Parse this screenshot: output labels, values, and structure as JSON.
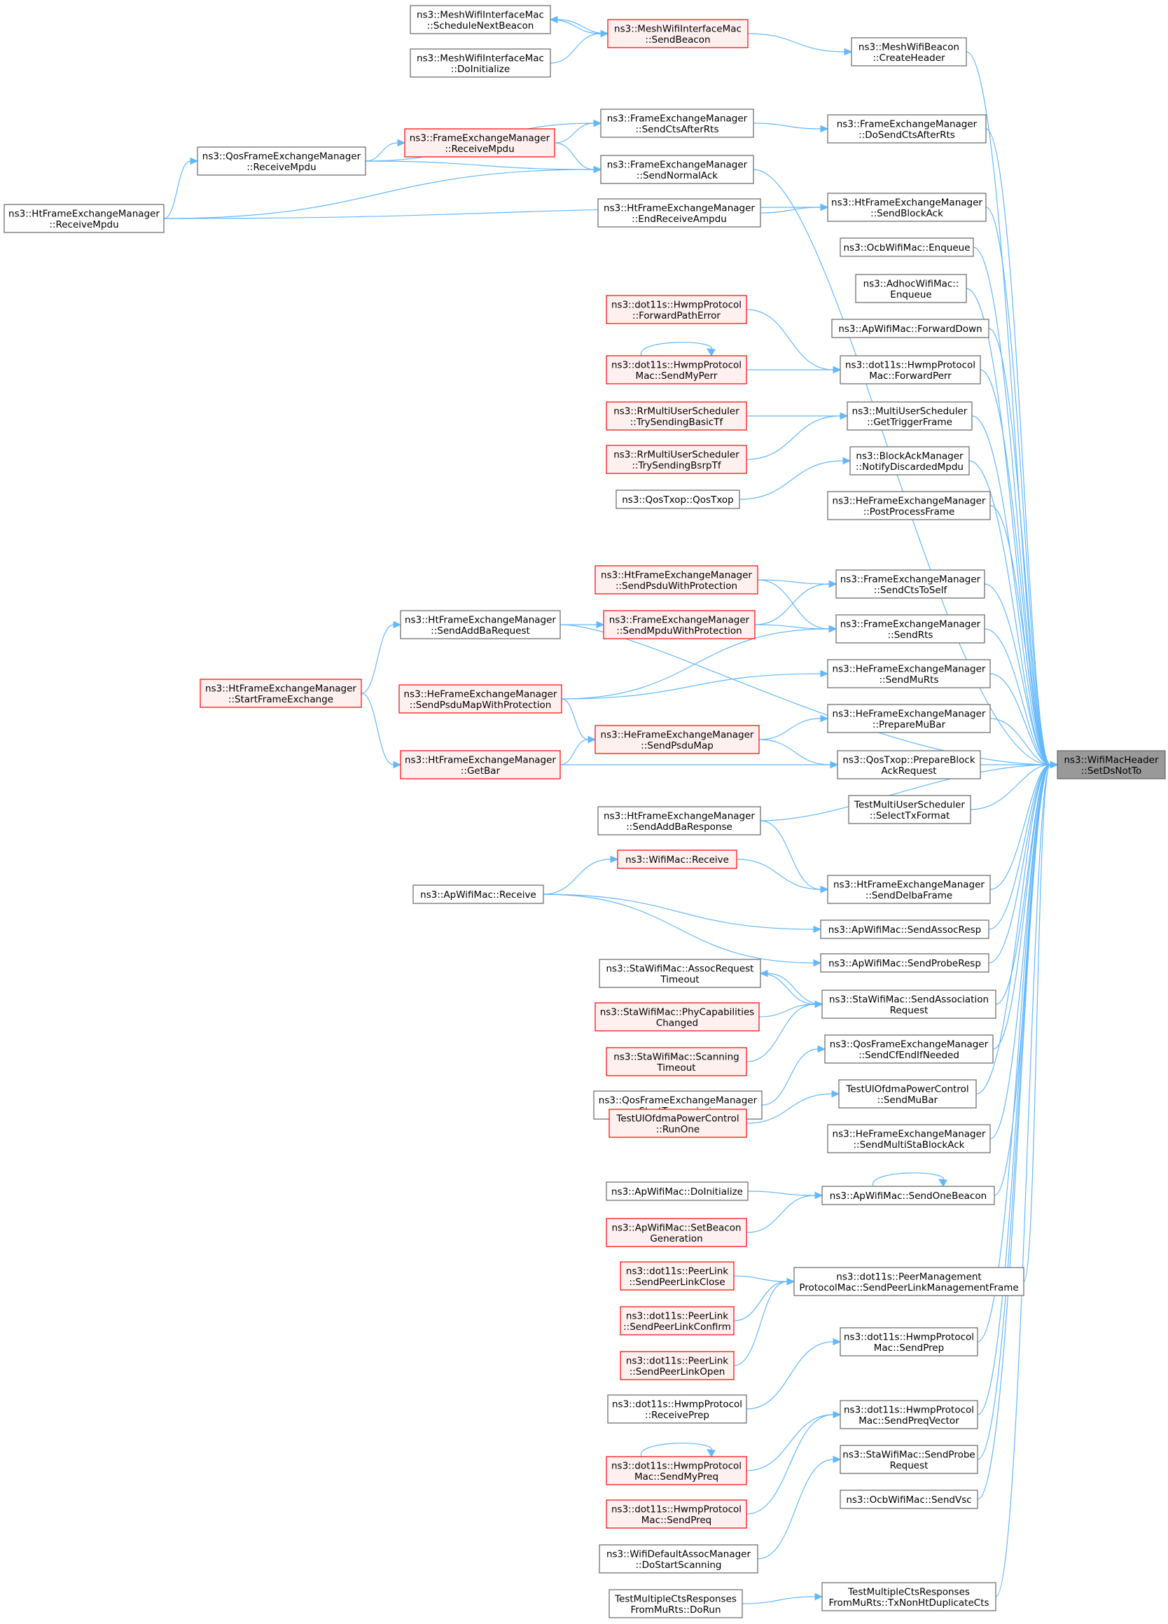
{
  "colors": {
    "edge": "#63b8ff",
    "normal_border": "#666666",
    "normal_fill": "#ffffff",
    "red_border": "#ff0000",
    "red_fill": "#fff0f0",
    "root_fill": "#999999",
    "root_border": "#666666"
  },
  "nodes": [
    {
      "id": "root",
      "lines": [
        "ns3::WifiMacHeader",
        "::SetDsNotTo"
      ],
      "style": "root"
    },
    {
      "id": "schedNextBeacon",
      "lines": [
        "ns3::MeshWifiInterfaceMac",
        "::ScheduleNextBeacon"
      ],
      "style": "normal"
    },
    {
      "id": "sendBeacon",
      "lines": [
        "ns3::MeshWifiInterfaceMac",
        "::SendBeacon"
      ],
      "style": "red"
    },
    {
      "id": "doInitMesh",
      "lines": [
        "ns3::MeshWifiInterfaceMac",
        "::DoInitialize"
      ],
      "style": "normal"
    },
    {
      "id": "createHeader",
      "lines": [
        "ns3::MeshWifiBeacon",
        "::CreateHeader"
      ],
      "style": "normal"
    },
    {
      "id": "sendCtsAfterRts",
      "lines": [
        "ns3::FrameExchangeManager",
        "::SendCtsAfterRts"
      ],
      "style": "normal"
    },
    {
      "id": "doSendCtsAfterRts",
      "lines": [
        "ns3::FrameExchangeManager",
        "::DoSendCtsAfterRts"
      ],
      "style": "normal"
    },
    {
      "id": "qosRecvMpdu",
      "lines": [
        "ns3::QosFrameExchangeManager",
        "::ReceiveMpdu"
      ],
      "style": "normal"
    },
    {
      "id": "femRecvMpdu",
      "lines": [
        "ns3::FrameExchangeManager",
        "::ReceiveMpdu"
      ],
      "style": "red"
    },
    {
      "id": "sendNormalAck",
      "lines": [
        "ns3::FrameExchangeManager",
        "::SendNormalAck"
      ],
      "style": "normal"
    },
    {
      "id": "htRecvMpdu",
      "lines": [
        "ns3::HtFrameExchangeManager",
        "::ReceiveMpdu"
      ],
      "style": "normal"
    },
    {
      "id": "endRecvAmpdu",
      "lines": [
        "ns3::HtFrameExchangeManager",
        "::EndReceiveAmpdu"
      ],
      "style": "normal"
    },
    {
      "id": "sendBlockAck",
      "lines": [
        "ns3::HtFrameExchangeManager",
        "::SendBlockAck"
      ],
      "style": "normal"
    },
    {
      "id": "ocbEnqueue",
      "lines": [
        "ns3::OcbWifiMac::Enqueue"
      ],
      "style": "normal"
    },
    {
      "id": "adhocEnqueue",
      "lines": [
        "ns3::AdhocWifiMac::",
        "Enqueue"
      ],
      "style": "normal"
    },
    {
      "id": "apFwdDown",
      "lines": [
        "ns3::ApWifiMac::ForwardDown"
      ],
      "style": "normal"
    },
    {
      "id": "fwdPathError",
      "lines": [
        "ns3::dot11s::HwmpProtocol",
        "::ForwardPathError"
      ],
      "style": "red"
    },
    {
      "id": "sendMyPerr",
      "lines": [
        "ns3::dot11s::HwmpProtocol",
        "Mac::SendMyPerr"
      ],
      "style": "red"
    },
    {
      "id": "fwdPerr",
      "lines": [
        "ns3::dot11s::HwmpProtocol",
        "Mac::ForwardPerr"
      ],
      "style": "normal"
    },
    {
      "id": "trySendBasicTf",
      "lines": [
        "ns3::RrMultiUserScheduler",
        "::TrySendingBasicTf"
      ],
      "style": "red"
    },
    {
      "id": "trySendBsrpTf",
      "lines": [
        "ns3::RrMultiUserScheduler",
        "::TrySendingBsrpTf"
      ],
      "style": "red"
    },
    {
      "id": "getTriggerFrame",
      "lines": [
        "ns3::MultiUserScheduler",
        "::GetTriggerFrame"
      ],
      "style": "normal"
    },
    {
      "id": "notifyDiscarded",
      "lines": [
        "ns3::BlockAckManager",
        "::NotifyDiscardedMpdu"
      ],
      "style": "normal"
    },
    {
      "id": "qosTxop",
      "lines": [
        "ns3::QosTxop::QosTxop"
      ],
      "style": "normal"
    },
    {
      "id": "postProcess",
      "lines": [
        "ns3::HeFrameExchangeManager",
        "::PostProcessFrame"
      ],
      "style": "normal"
    },
    {
      "id": "sendPsduWithProt",
      "lines": [
        "ns3::HtFrameExchangeManager",
        "::SendPsduWithProtection"
      ],
      "style": "red"
    },
    {
      "id": "sendCtsToSelf",
      "lines": [
        "ns3::FrameExchangeManager",
        "::SendCtsToSelf"
      ],
      "style": "normal"
    },
    {
      "id": "sendAddBaReq",
      "lines": [
        "ns3::HtFrameExchangeManager",
        "::SendAddBaRequest"
      ],
      "style": "normal"
    },
    {
      "id": "sendMpduWithProt",
      "lines": [
        "ns3::FrameExchangeManager",
        "::SendMpduWithProtection"
      ],
      "style": "red"
    },
    {
      "id": "sendRts",
      "lines": [
        "ns3::FrameExchangeManager",
        "::SendRts"
      ],
      "style": "normal"
    },
    {
      "id": "startFrameExch",
      "lines": [
        "ns3::HtFrameExchangeManager",
        "::StartFrameExchange"
      ],
      "style": "red"
    },
    {
      "id": "sendPsduMapWithProt",
      "lines": [
        "ns3::HeFrameExchangeManager",
        "::SendPsduMapWithProtection"
      ],
      "style": "red"
    },
    {
      "id": "sendMuRts",
      "lines": [
        "ns3::HeFrameExchangeManager",
        "::SendMuRts"
      ],
      "style": "normal"
    },
    {
      "id": "prepareMuBar",
      "lines": [
        "ns3::HeFrameExchangeManager",
        "::PrepareMuBar"
      ],
      "style": "normal"
    },
    {
      "id": "sendPsduMap",
      "lines": [
        "ns3::HeFrameExchangeManager",
        "::SendPsduMap"
      ],
      "style": "red"
    },
    {
      "id": "getBar",
      "lines": [
        "ns3::HtFrameExchangeManager",
        "::GetBar"
      ],
      "style": "red"
    },
    {
      "id": "prepareBlockAckReq",
      "lines": [
        "ns3::QosTxop::PrepareBlock",
        "AckRequest"
      ],
      "style": "normal"
    },
    {
      "id": "testSelectTx",
      "lines": [
        "TestMultiUserScheduler",
        "::SelectTxFormat"
      ],
      "style": "normal"
    },
    {
      "id": "sendAddBaResp",
      "lines": [
        "ns3::HtFrameExchangeManager",
        "::SendAddBaResponse"
      ],
      "style": "normal"
    },
    {
      "id": "wifiMacRecv",
      "lines": [
        "ns3::WifiMac::Receive"
      ],
      "style": "red"
    },
    {
      "id": "sendDelba",
      "lines": [
        "ns3::HtFrameExchangeManager",
        "::SendDelbaFrame"
      ],
      "style": "normal"
    },
    {
      "id": "apRecv",
      "lines": [
        "ns3::ApWifiMac::Receive"
      ],
      "style": "normal"
    },
    {
      "id": "sendAssocResp",
      "lines": [
        "ns3::ApWifiMac::SendAssocResp"
      ],
      "style": "normal"
    },
    {
      "id": "sendProbeResp",
      "lines": [
        "ns3::ApWifiMac::SendProbeResp"
      ],
      "style": "normal"
    },
    {
      "id": "assocReqTimeout",
      "lines": [
        "ns3::StaWifiMac::AssocRequest",
        "Timeout"
      ],
      "style": "normal"
    },
    {
      "id": "sendAssocReq",
      "lines": [
        "ns3::StaWifiMac::SendAssociation",
        "Request"
      ],
      "style": "normal"
    },
    {
      "id": "phyCapChanged",
      "lines": [
        "ns3::StaWifiMac::PhyCapabilities",
        "Changed"
      ],
      "style": "red"
    },
    {
      "id": "scanTimeout",
      "lines": [
        "ns3::StaWifiMac::Scanning",
        "Timeout"
      ],
      "style": "red"
    },
    {
      "id": "sendCfEnd",
      "lines": [
        "ns3::QosFrameExchangeManager",
        "::SendCfEndIfNeeded"
      ],
      "style": "normal"
    },
    {
      "id": "startTransmission",
      "lines": [
        "ns3::QosFrameExchangeManager",
        "::StartTransmission"
      ],
      "style": "normal"
    },
    {
      "id": "testSendMuBar",
      "lines": [
        "TestUlOfdmaPowerControl",
        "::SendMuBar"
      ],
      "style": "normal"
    },
    {
      "id": "testRunOne",
      "lines": [
        "TestUlOfdmaPowerControl",
        "::RunOne"
      ],
      "style": "red"
    },
    {
      "id": "sendMultiSta",
      "lines": [
        "ns3::HeFrameExchangeManager",
        "::SendMultiStaBlockAck"
      ],
      "style": "normal"
    },
    {
      "id": "apDoInit",
      "lines": [
        "ns3::ApWifiMac::DoInitialize"
      ],
      "style": "normal"
    },
    {
      "id": "sendOneBeacon",
      "lines": [
        "ns3::ApWifiMac::SendOneBeacon"
      ],
      "style": "normal"
    },
    {
      "id": "setBeaconGen",
      "lines": [
        "ns3::ApWifiMac::SetBeacon",
        "Generation"
      ],
      "style": "red"
    },
    {
      "id": "plClose",
      "lines": [
        "ns3::dot11s::PeerLink",
        "::SendPeerLinkClose"
      ],
      "style": "red"
    },
    {
      "id": "pmpSend",
      "lines": [
        "ns3::dot11s::PeerManagement",
        "ProtocolMac::SendPeerLinkManagementFrame"
      ],
      "style": "normal"
    },
    {
      "id": "plConfirm",
      "lines": [
        "ns3::dot11s::PeerLink",
        "::SendPeerLinkConfirm"
      ],
      "style": "red"
    },
    {
      "id": "plOpen",
      "lines": [
        "ns3::dot11s::PeerLink",
        "::SendPeerLinkOpen"
      ],
      "style": "red"
    },
    {
      "id": "macSendPrep",
      "lines": [
        "ns3::dot11s::HwmpProtocol",
        "Mac::SendPrep"
      ],
      "style": "normal"
    },
    {
      "id": "recvPrep",
      "lines": [
        "ns3::dot11s::HwmpProtocol",
        "::ReceivePrep"
      ],
      "style": "normal"
    },
    {
      "id": "sendPreqVector",
      "lines": [
        "ns3::dot11s::HwmpProtocol",
        "Mac::SendPreqVector"
      ],
      "style": "normal"
    },
    {
      "id": "sendMyPreq",
      "lines": [
        "ns3::dot11s::HwmpProtocol",
        "Mac::SendMyPreq"
      ],
      "style": "red"
    },
    {
      "id": "sendProbeReq",
      "lines": [
        "ns3::StaWifiMac::SendProbe",
        "Request"
      ],
      "style": "normal"
    },
    {
      "id": "hwmpSendPreq",
      "lines": [
        "ns3::dot11s::HwmpProtocol",
        "Mac::SendPreq"
      ],
      "style": "red"
    },
    {
      "id": "ocbSendVsc",
      "lines": [
        "ns3::OcbWifiMac::SendVsc"
      ],
      "style": "normal"
    },
    {
      "id": "doStartScan",
      "lines": [
        "ns3::WifiDefaultAssocManager",
        "::DoStartScanning"
      ],
      "style": "normal"
    },
    {
      "id": "ctsDoRun",
      "lines": [
        "TestMultipleCtsResponses",
        "FromMuRts::DoRun"
      ],
      "style": "normal"
    },
    {
      "id": "ctsTxNonHt",
      "lines": [
        "TestMultipleCtsResponses",
        "FromMuRts::TxNonHtDuplicateCts"
      ],
      "style": "normal"
    }
  ]
}
